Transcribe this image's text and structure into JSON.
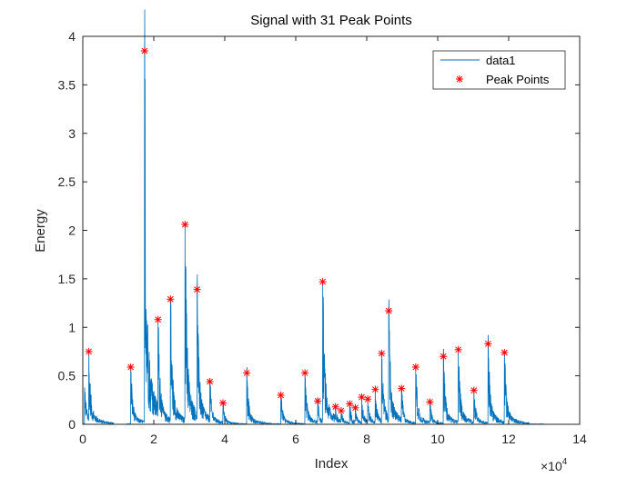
{
  "chart_data": {
    "type": "line",
    "title": "Signal with 31 Peak Points",
    "xlabel": "Index",
    "ylabel": "Energy",
    "x_exponent_label": "×10",
    "x_exponent_power": "4",
    "xlim": [
      0,
      14
    ],
    "ylim": [
      0,
      4
    ],
    "x_ticks": [
      "0",
      "2",
      "4",
      "6",
      "8",
      "10",
      "12",
      "14"
    ],
    "y_ticks": [
      "0",
      "0.5",
      "1",
      "1.5",
      "2",
      "2.5",
      "3",
      "3.5",
      "4"
    ],
    "grid": false,
    "legend_placement": "top-right",
    "colors": {
      "signal": "#0072BD",
      "peaks": "#FF0000",
      "axes": "#262626"
    },
    "signal_end_x": 13.0,
    "signal_bursts": [
      {
        "x": 0.05,
        "amp": 0.38
      },
      {
        "x": 0.17,
        "amp": 0.75
      },
      {
        "x": 1.35,
        "amp": 0.59
      },
      {
        "x": 1.74,
        "amp": 3.85
      },
      {
        "x": 2.12,
        "amp": 1.08
      },
      {
        "x": 2.47,
        "amp": 1.29
      },
      {
        "x": 2.88,
        "amp": 2.06
      },
      {
        "x": 3.22,
        "amp": 1.39
      },
      {
        "x": 3.58,
        "amp": 0.44
      },
      {
        "x": 3.95,
        "amp": 0.22
      },
      {
        "x": 4.62,
        "amp": 0.53
      },
      {
        "x": 5.58,
        "amp": 0.3
      },
      {
        "x": 6.26,
        "amp": 0.53
      },
      {
        "x": 6.62,
        "amp": 0.24
      },
      {
        "x": 6.76,
        "amp": 1.47
      },
      {
        "x": 7.12,
        "amp": 0.18
      },
      {
        "x": 7.28,
        "amp": 0.14
      },
      {
        "x": 7.52,
        "amp": 0.21
      },
      {
        "x": 7.68,
        "amp": 0.17
      },
      {
        "x": 7.86,
        "amp": 0.28
      },
      {
        "x": 8.03,
        "amp": 0.26
      },
      {
        "x": 8.24,
        "amp": 0.36
      },
      {
        "x": 8.42,
        "amp": 0.73
      },
      {
        "x": 8.62,
        "amp": 1.17
      },
      {
        "x": 8.98,
        "amp": 0.37
      },
      {
        "x": 9.38,
        "amp": 0.59
      },
      {
        "x": 9.78,
        "amp": 0.23
      },
      {
        "x": 10.16,
        "amp": 0.7
      },
      {
        "x": 10.58,
        "amp": 0.77
      },
      {
        "x": 11.02,
        "amp": 0.35
      },
      {
        "x": 11.42,
        "amp": 0.83
      },
      {
        "x": 11.88,
        "amp": 0.74
      }
    ],
    "series": [
      {
        "name": "data1",
        "kind": "line"
      },
      {
        "name": "Peak Points",
        "kind": "marker",
        "x": [
          0.17,
          1.35,
          1.74,
          2.12,
          2.47,
          2.88,
          3.22,
          3.58,
          3.95,
          4.62,
          5.58,
          6.26,
          6.62,
          6.76,
          7.12,
          7.28,
          7.52,
          7.68,
          7.86,
          8.03,
          8.24,
          8.42,
          8.62,
          8.98,
          9.38,
          9.78,
          10.16,
          10.58,
          11.02,
          11.42,
          11.88
        ],
        "y": [
          0.75,
          0.59,
          3.85,
          1.08,
          1.29,
          2.06,
          1.39,
          0.44,
          0.22,
          0.53,
          0.3,
          0.53,
          0.24,
          1.47,
          0.18,
          0.14,
          0.21,
          0.17,
          0.28,
          0.26,
          0.36,
          0.73,
          1.17,
          0.37,
          0.59,
          0.23,
          0.7,
          0.77,
          0.35,
          0.83,
          0.74
        ]
      }
    ]
  }
}
